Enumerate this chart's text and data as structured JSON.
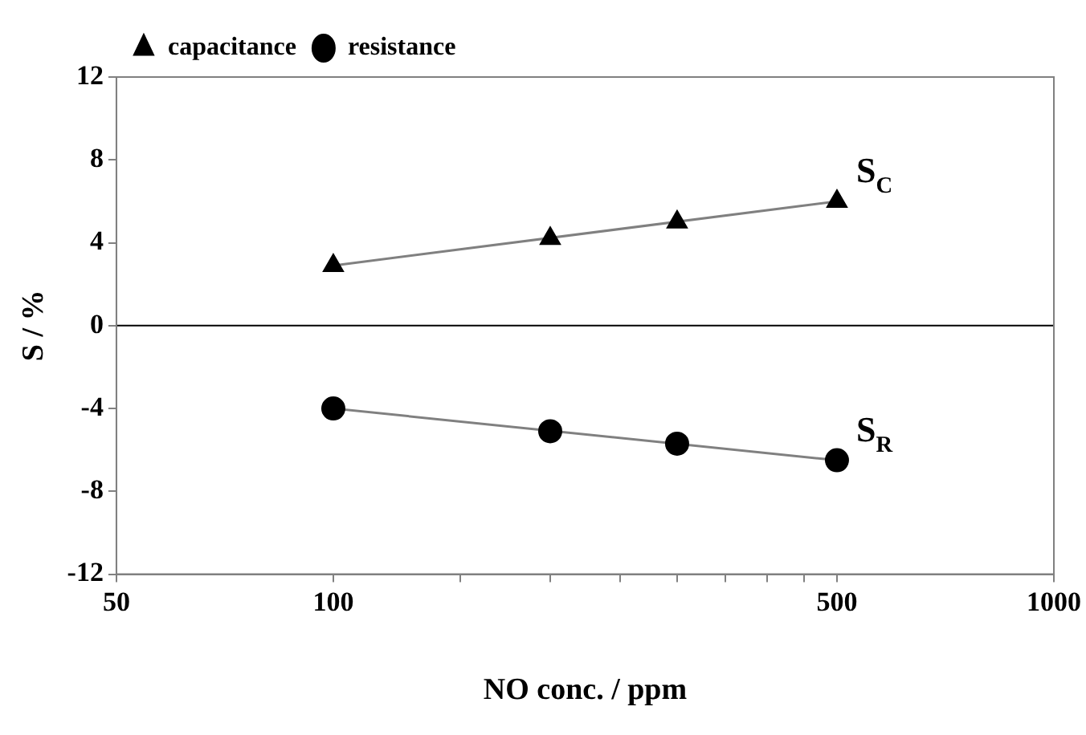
{
  "chart_data": {
    "type": "scatter",
    "xlabel": "NO conc. / ppm",
    "ylabel": "S / %",
    "log": "x",
    "xlim": [
      50,
      1000
    ],
    "xticks": [
      50,
      100,
      {
        "value": 150,
        "label": null
      },
      {
        "value": 200,
        "label": null
      },
      {
        "value": 250,
        "label": null
      },
      {
        "value": 300,
        "label": null
      },
      {
        "value": 350,
        "label": null
      },
      {
        "value": 400,
        "label": null
      },
      {
        "value": 450,
        "label": null
      },
      500,
      1000
    ],
    "ylim": [
      -12,
      12
    ],
    "yticks": [
      -12,
      -8,
      -4,
      0,
      4,
      8,
      12
    ],
    "grid": false,
    "legend": "top left",
    "ref_lines": [
      {
        "axis": "y",
        "value": 0,
        "color": "#000000"
      }
    ],
    "annotations": [
      {
        "text": "S$_{C}$",
        "x": 500,
        "y": 6.0
      },
      {
        "text": "S$_{R}$",
        "x": 500,
        "y": -6.5
      }
    ],
    "series": [
      {
        "name": "capacitance",
        "color": "#000000",
        "marker": "triangle",
        "x": [
          100,
          200,
          300,
          500
        ],
        "values": [
          2.9,
          4.2,
          5.0,
          6.0
        ]
      },
      {
        "name": "resistance",
        "color": "#000000",
        "marker": "circle",
        "x": [
          100,
          200,
          300,
          500
        ],
        "values": [
          -4.0,
          -5.1,
          -5.7,
          -6.5
        ]
      },
      {
        "type": "line",
        "color": "#808080",
        "marker": "none",
        "line_style": "solid",
        "x": [
          100,
          500
        ],
        "values": [
          2.9,
          6.0
        ]
      },
      {
        "type": "line",
        "color": "#808080",
        "marker": "none",
        "line_style": "solid",
        "x": [
          100,
          500
        ],
        "values": [
          -4.0,
          -6.5
        ]
      }
    ]
  }
}
